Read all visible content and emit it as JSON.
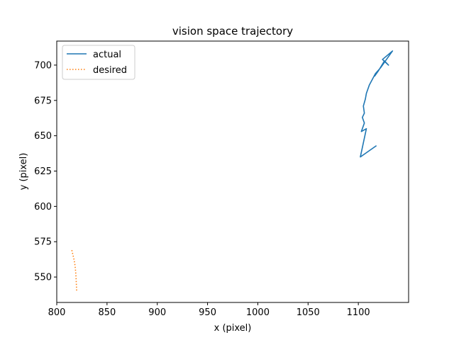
{
  "chart_data": {
    "type": "line",
    "title": "vision space trajectory",
    "xlabel": "x (pixel)",
    "ylabel": "y (pixel)",
    "xlim": [
      800,
      1150
    ],
    "ylim": [
      532,
      717
    ],
    "xticks": [
      800,
      850,
      900,
      950,
      1000,
      1050,
      1100
    ],
    "yticks": [
      550,
      575,
      600,
      625,
      650,
      675,
      700
    ],
    "grid": false,
    "legend": "top-left",
    "series": [
      {
        "name": "actual",
        "style": "solid",
        "color": "#1f77b4",
        "points": [
          [
            1118,
            643
          ],
          [
            1102,
            635
          ],
          [
            1108,
            655
          ],
          [
            1103,
            653
          ],
          [
            1106,
            659
          ],
          [
            1104,
            663
          ],
          [
            1106,
            666
          ],
          [
            1105,
            671
          ],
          [
            1107,
            676
          ],
          [
            1108,
            680
          ],
          [
            1111,
            686
          ],
          [
            1114,
            690
          ],
          [
            1117,
            694
          ],
          [
            1122,
            698
          ],
          [
            1126,
            702
          ],
          [
            1131,
            707
          ],
          [
            1134,
            710
          ],
          [
            1124,
            704
          ],
          [
            1130,
            700
          ],
          [
            1126,
            703
          ],
          [
            1120,
            696
          ],
          [
            1116,
            692
          ]
        ]
      },
      {
        "name": "desired",
        "style": "dotted",
        "color": "#ff7f0e",
        "points": [
          [
            815,
            569
          ],
          [
            816,
            566
          ],
          [
            817,
            563
          ],
          [
            818,
            559
          ],
          [
            818.5,
            556
          ],
          [
            819,
            552
          ],
          [
            819.3,
            548
          ],
          [
            819.5,
            545
          ],
          [
            819.7,
            542
          ],
          [
            819.8,
            540
          ]
        ]
      }
    ]
  }
}
